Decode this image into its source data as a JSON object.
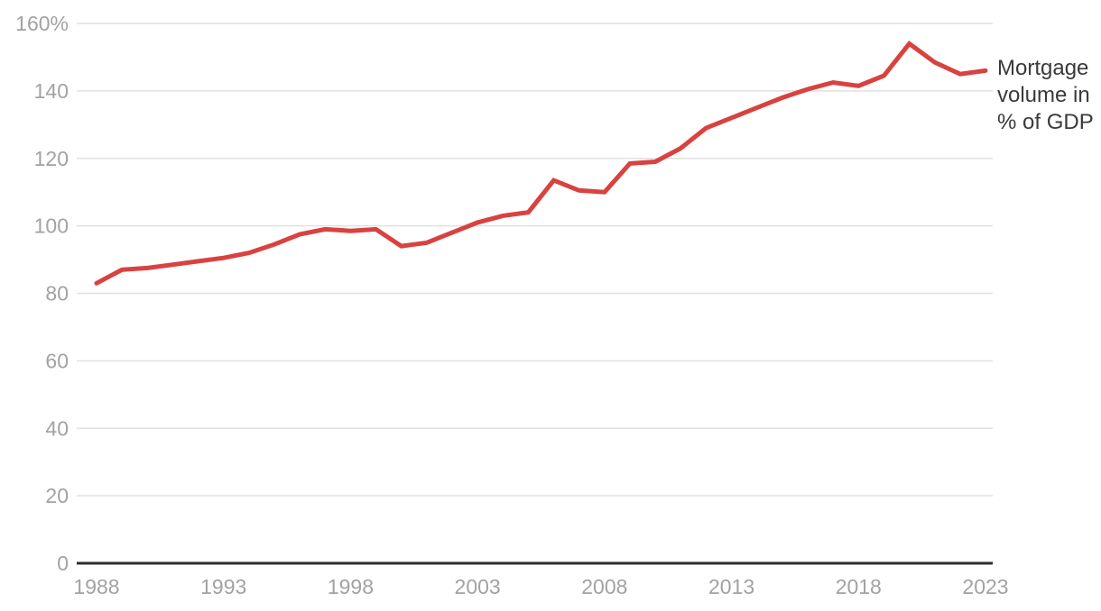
{
  "chart_data": {
    "type": "line",
    "title": "",
    "xlabel": "",
    "ylabel": "",
    "xlim": [
      1988,
      2023
    ],
    "ylim": [
      0,
      160
    ],
    "grid": "horizontal",
    "x_ticks": [
      1988,
      1993,
      1998,
      2003,
      2008,
      2013,
      2018,
      2023
    ],
    "x_tick_labels": [
      "1988",
      "1993",
      "1998",
      "2003",
      "2008",
      "2013",
      "2018",
      "2023"
    ],
    "y_ticks": [
      0,
      20,
      40,
      60,
      80,
      100,
      120,
      140,
      160
    ],
    "y_tick_labels": [
      "0",
      "20",
      "40",
      "60",
      "80",
      "100",
      "120",
      "140",
      "160%"
    ],
    "legend_position": "right of line end",
    "series": [
      {
        "name": "Mortgage volume in % of GDP",
        "label_lines": [
          "Mortgage",
          "volume in",
          "% of GDP"
        ],
        "x": [
          1988,
          1989,
          1990,
          1991,
          1992,
          1993,
          1994,
          1995,
          1996,
          1997,
          1998,
          1999,
          2000,
          2001,
          2002,
          2003,
          2004,
          2005,
          2006,
          2007,
          2008,
          2009,
          2010,
          2011,
          2012,
          2013,
          2014,
          2015,
          2016,
          2017,
          2018,
          2019,
          2020,
          2021,
          2022,
          2023
        ],
        "values": [
          83,
          87,
          87.5,
          88.5,
          89.5,
          90.5,
          92,
          94.5,
          97.5,
          99,
          98.5,
          99,
          94,
          95,
          98,
          101,
          103,
          104,
          113.5,
          110.5,
          110,
          118.5,
          119,
          123,
          129,
          132,
          135,
          138,
          140.5,
          142.5,
          141.5,
          144.5,
          154,
          148.5,
          145,
          146
        ]
      }
    ]
  },
  "colors": {
    "line": "#d8423f",
    "gridline": "#e0e0e0",
    "axis_line": "#2e2e2e",
    "tick_label": "#a2a2a2",
    "legend_text": "#3a3a3a",
    "background": "#ffffff"
  }
}
